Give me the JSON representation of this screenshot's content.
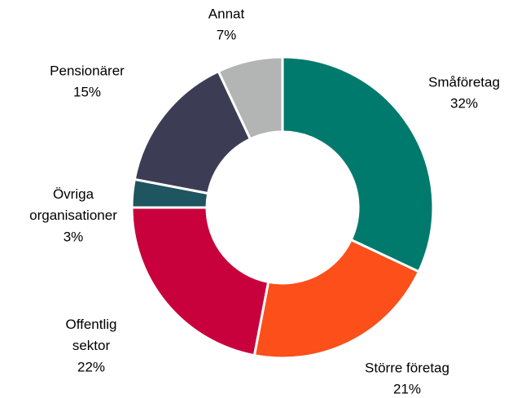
{
  "chart_data": {
    "type": "donut",
    "categories": [
      "Småföretag",
      "Större företag",
      "Offentlig sektor",
      "Övriga organisationer",
      "Pensionärer",
      "Annat"
    ],
    "values": [
      32,
      21,
      22,
      3,
      15,
      7
    ],
    "value_labels": [
      "32%",
      "21%",
      "22%",
      "3%",
      "15%",
      "7%"
    ],
    "colors": [
      "#007a6c",
      "#fc4f1a",
      "#c8003c",
      "#1f5560",
      "#3c3d55",
      "#b3b5b5"
    ]
  }
}
